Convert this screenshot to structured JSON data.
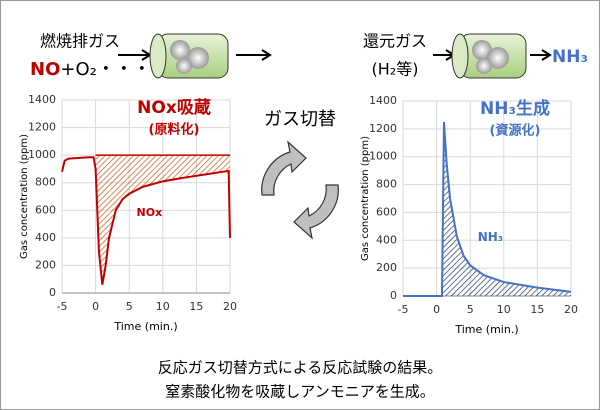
{
  "top": {
    "left_label": "燃焼排ガス",
    "left_gas_main": "NO",
    "left_gas_rest": "+O₂・・・",
    "right_label": "還元ガス",
    "right_gas": "(H₂等)",
    "product": "NH₃",
    "switch": "ガス切替"
  },
  "caption": [
    "反応ガス切替方式による反応試験の結果。",
    "窒素酸化物を吸蔵しアンモニアを生成。"
  ],
  "chart_data": [
    {
      "type": "line",
      "title": "NOx吸蔵",
      "subtitle": "(原料化)",
      "annotation": "NOx",
      "x_label": "Time (min.)",
      "y_label": "Gas concentration (ppm)",
      "x": [
        -5,
        -4.6,
        -4,
        -1,
        -0.3,
        0,
        0.5,
        1,
        1.5,
        2,
        3,
        4,
        5,
        7,
        10,
        13,
        15,
        17,
        19,
        19.8,
        20
      ],
      "series": [
        {
          "name": "NOx",
          "color": "#c00000",
          "values": [
            880,
            960,
            975,
            985,
            985,
            900,
            300,
            60,
            200,
            400,
            600,
            680,
            720,
            770,
            810,
            835,
            850,
            865,
            880,
            885,
            400
          ]
        }
      ],
      "hatch": {
        "from": 0,
        "level": 1000,
        "color": "#c55a11"
      },
      "xlim": [
        -5,
        20
      ],
      "xticks": [
        -5,
        0,
        5,
        10,
        15,
        20
      ],
      "ylim": [
        0,
        1400
      ],
      "yticks": [
        0,
        200,
        400,
        600,
        800,
        1000,
        1200,
        1400
      ],
      "grid": true
    },
    {
      "type": "line",
      "title": "NH₃生成",
      "subtitle": "(資源化)",
      "annotation": "NH₃",
      "x_label": "Time (min.)",
      "y_label": "Gas concentration (ppm)",
      "x": [
        -5,
        0,
        0.8,
        1.1,
        1.5,
        2,
        3,
        4,
        5,
        7,
        10,
        15,
        20
      ],
      "series": [
        {
          "name": "NH₃",
          "color": "#4472c4",
          "values": [
            0,
            0,
            0,
            1250,
            950,
            700,
            430,
            290,
            220,
            150,
            100,
            60,
            30
          ]
        }
      ],
      "hatch": {
        "from": 0,
        "level": 0,
        "color": "#1f3864"
      },
      "xlim": [
        -5,
        20
      ],
      "xticks": [
        -5,
        0,
        5,
        10,
        15,
        20
      ],
      "ylim": [
        0,
        1400
      ],
      "yticks": [
        0,
        200,
        400,
        600,
        800,
        1000,
        1200,
        1400
      ],
      "grid": true
    }
  ]
}
